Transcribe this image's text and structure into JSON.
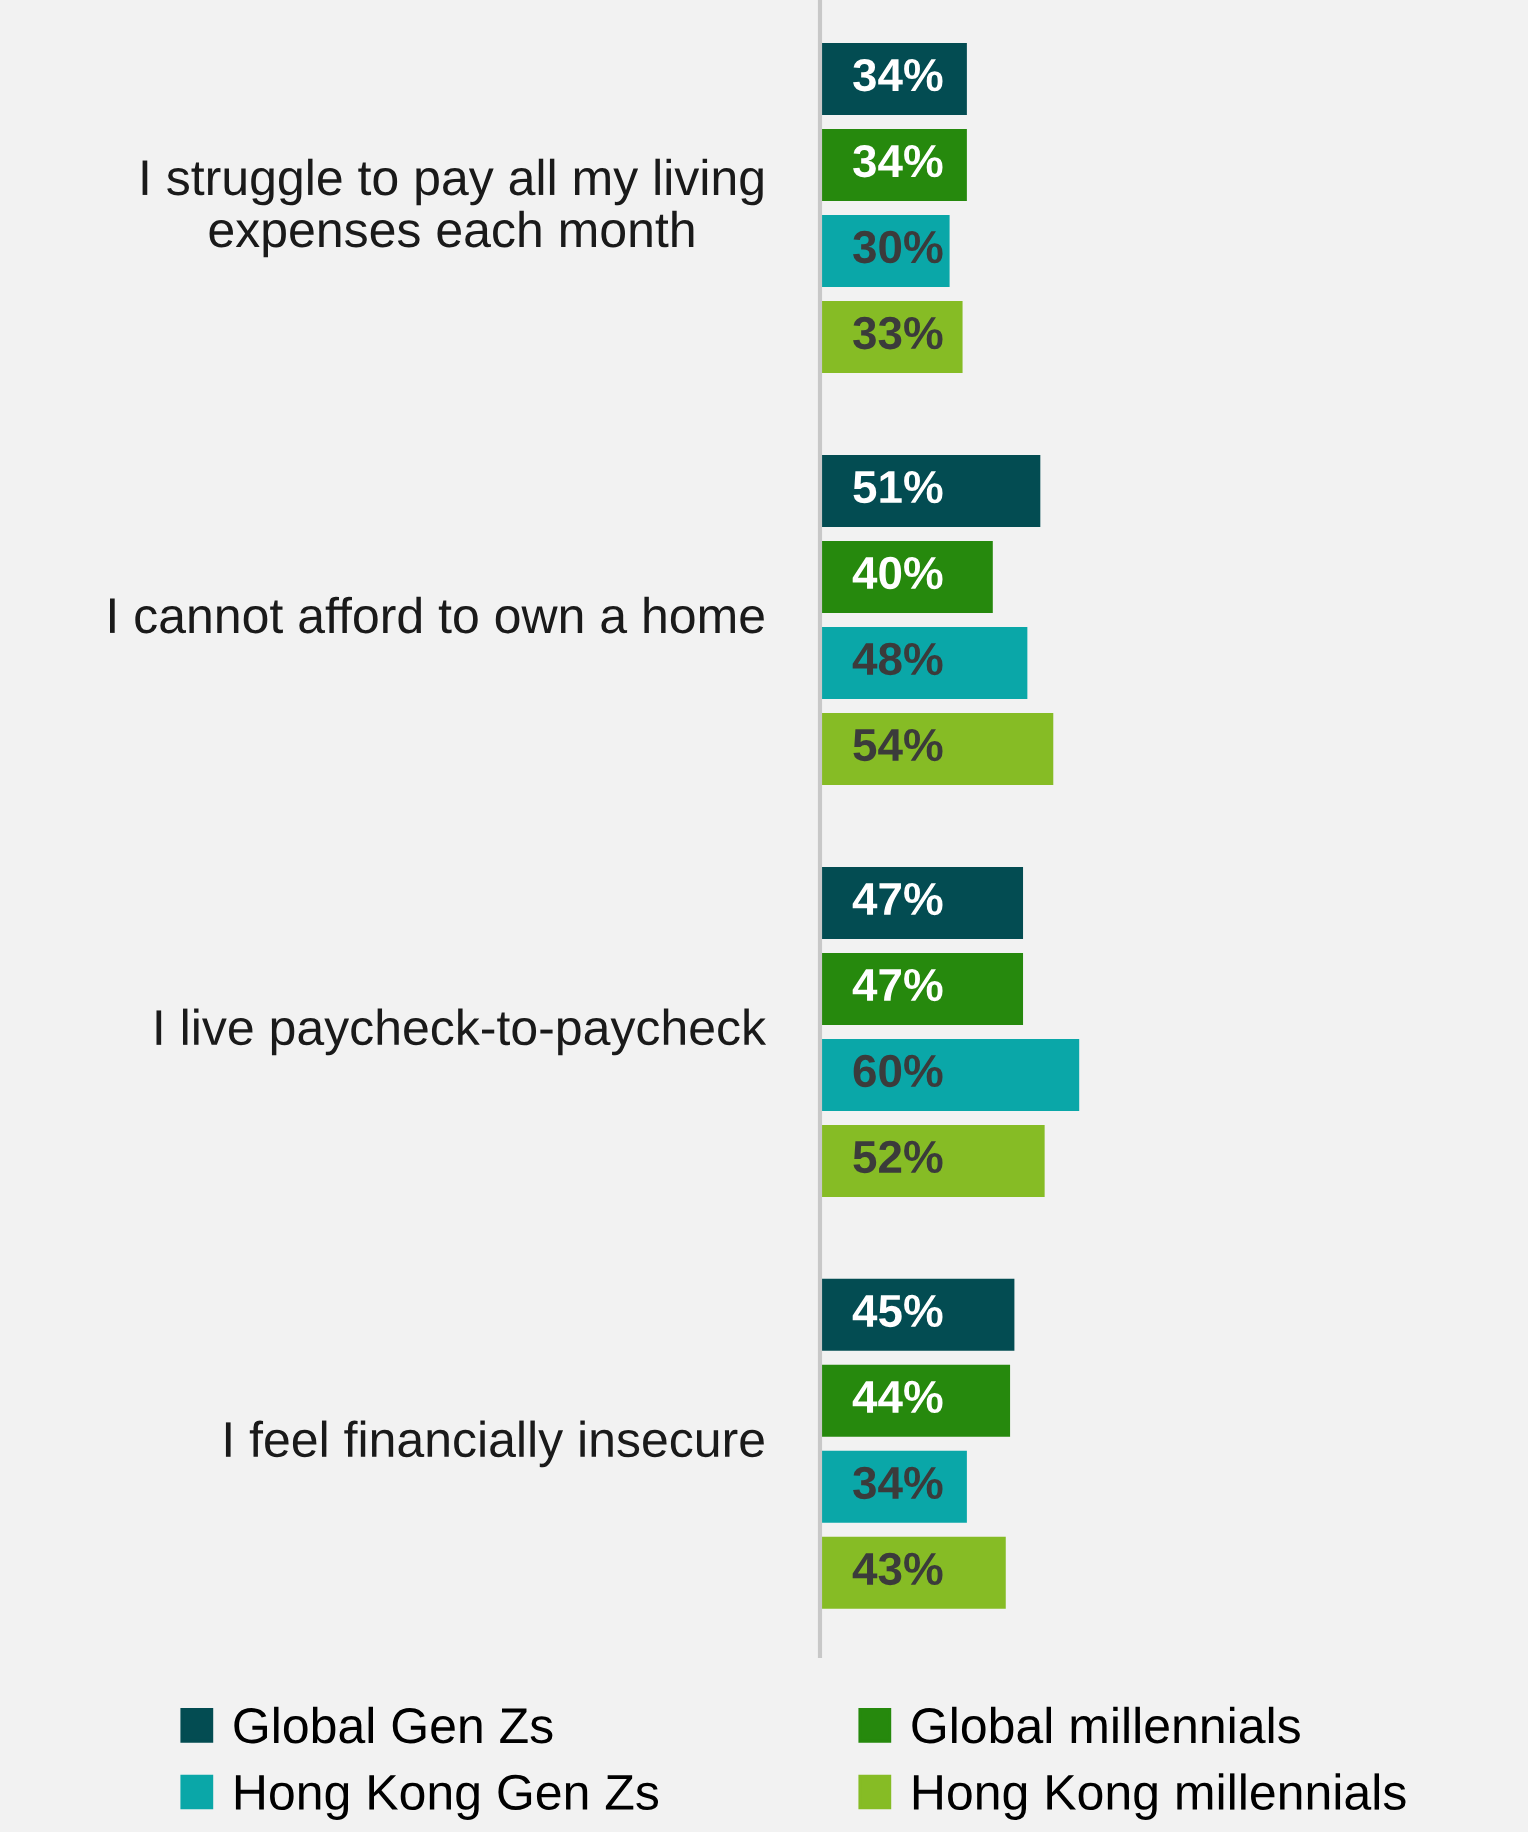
{
  "chart_data": {
    "type": "bar",
    "orientation": "horizontal",
    "categories": [
      "I struggle to pay all my living expenses each month",
      "I cannot afford to own a home",
      "I live paycheck-to-paycheck",
      "I feel financially insecure"
    ],
    "series": [
      {
        "name": "Global Gen Zs",
        "color": "#034c52",
        "values": [
          34,
          51,
          47,
          45
        ],
        "value_labels": [
          "34%",
          "51%",
          "47%",
          "45%"
        ]
      },
      {
        "name": "Global millennials",
        "color": "#26890d",
        "values": [
          34,
          40,
          47,
          44
        ],
        "value_labels": [
          "34%",
          "40%",
          "47%",
          "44%"
        ]
      },
      {
        "name": "Hong Kong Gen Zs",
        "color": "#0aa7a8",
        "values": [
          30,
          48,
          60,
          34
        ],
        "value_labels": [
          "30%",
          "48%",
          "60%",
          "34%"
        ]
      },
      {
        "name": "Hong Kong millennials",
        "color": "#86bc25",
        "values": [
          33,
          54,
          52,
          43
        ],
        "value_labels": [
          "33%",
          "54%",
          "52%",
          "43%"
        ]
      }
    ],
    "legend": "bottom",
    "tick_labels": "y"
  }
}
